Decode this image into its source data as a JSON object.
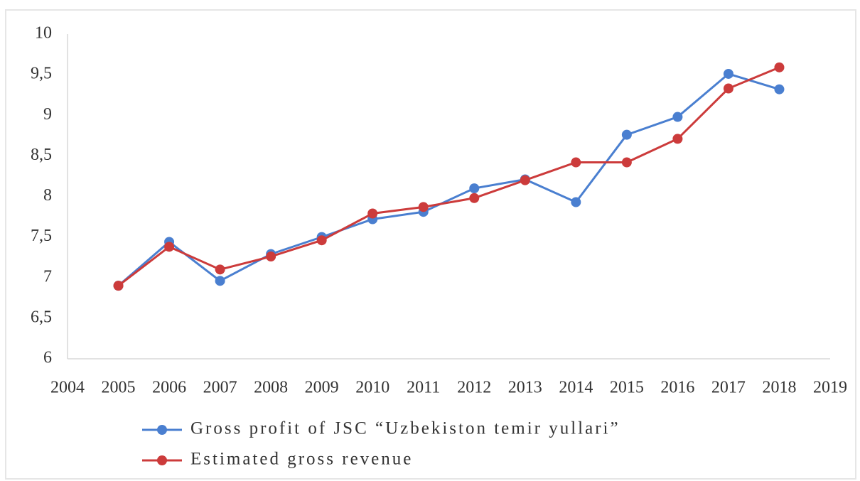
{
  "chart_data": {
    "type": "line",
    "x": [
      2005,
      2006,
      2007,
      2008,
      2009,
      2010,
      2011,
      2012,
      2013,
      2014,
      2015,
      2016,
      2017,
      2018
    ],
    "series": [
      {
        "name": "Gross profit of JSC “Uzbekiston temir yullari”",
        "color": "#4a7fd0",
        "values": [
          6.9,
          7.44,
          6.96,
          7.29,
          7.5,
          7.72,
          7.81,
          8.1,
          8.21,
          7.93,
          8.76,
          8.98,
          9.51,
          9.32
        ]
      },
      {
        "name": "Estimated gross revenue",
        "color": "#cc3b3b",
        "values": [
          6.9,
          7.38,
          7.1,
          7.26,
          7.46,
          7.79,
          7.87,
          7.98,
          8.2,
          8.42,
          8.42,
          8.71,
          9.33,
          9.59
        ]
      }
    ],
    "xlim": [
      2004,
      2019
    ],
    "xticks": [
      2004,
      2005,
      2006,
      2007,
      2008,
      2009,
      2010,
      2011,
      2012,
      2013,
      2014,
      2015,
      2016,
      2017,
      2018,
      2019
    ],
    "ylim": [
      6,
      10
    ],
    "yticks": [
      6,
      {
        "value": 6.5,
        "label": "6,5"
      },
      7,
      {
        "value": 7.5,
        "label": "7,5"
      },
      8,
      {
        "value": 8.5,
        "label": "8,5"
      },
      9,
      {
        "value": 9.5,
        "label": "9,5"
      },
      10
    ],
    "grid": false
  }
}
